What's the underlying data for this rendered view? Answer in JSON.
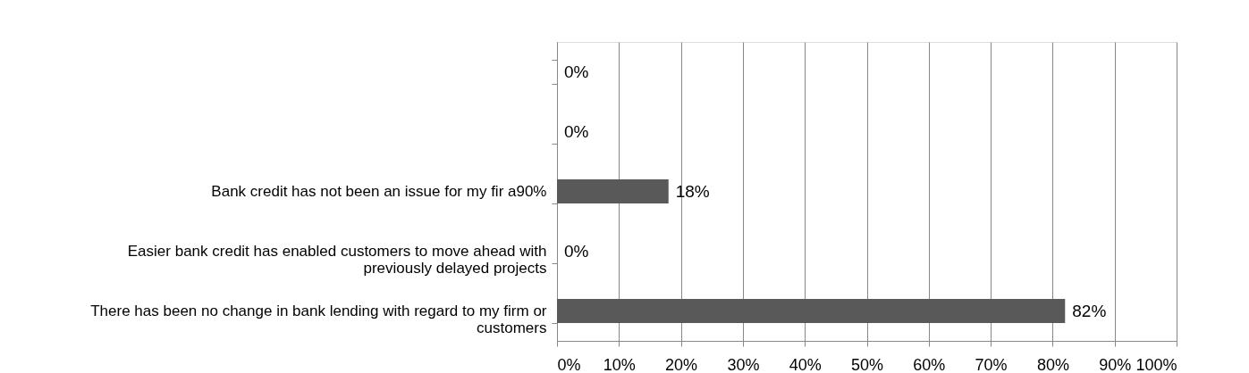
{
  "chart_data": {
    "type": "bar",
    "orientation": "horizontal",
    "categories": [
      null,
      null,
      "Bank credit has not been an issue for my fir a90%",
      "Easier bank credit has enabled customers to move ahead with previously delayed projects",
      "There has been no change in bank lending with regard to my firm or customers"
    ],
    "values": [
      0,
      0,
      18,
      0,
      82
    ],
    "value_labels": [
      "0%",
      "0%",
      "18%",
      "0%",
      "82%"
    ],
    "color": "#595959",
    "xlim": [
      0,
      100
    ],
    "xticks": [
      {
        "value": 0,
        "label": "0%"
      },
      {
        "value": 10,
        "label": "10%"
      },
      {
        "value": 20,
        "label": "20%"
      },
      {
        "value": 30,
        "label": "30%"
      },
      {
        "value": 40,
        "label": "40%"
      },
      {
        "value": 50,
        "label": "50%"
      },
      {
        "value": 60,
        "label": "60%"
      },
      {
        "value": 70,
        "label": "70%"
      },
      {
        "value": 80,
        "label": "80%"
      },
      {
        "value": 90,
        "label": "90%"
      },
      {
        "value": 100,
        "label": "100%"
      }
    ],
    "grid": "x"
  }
}
